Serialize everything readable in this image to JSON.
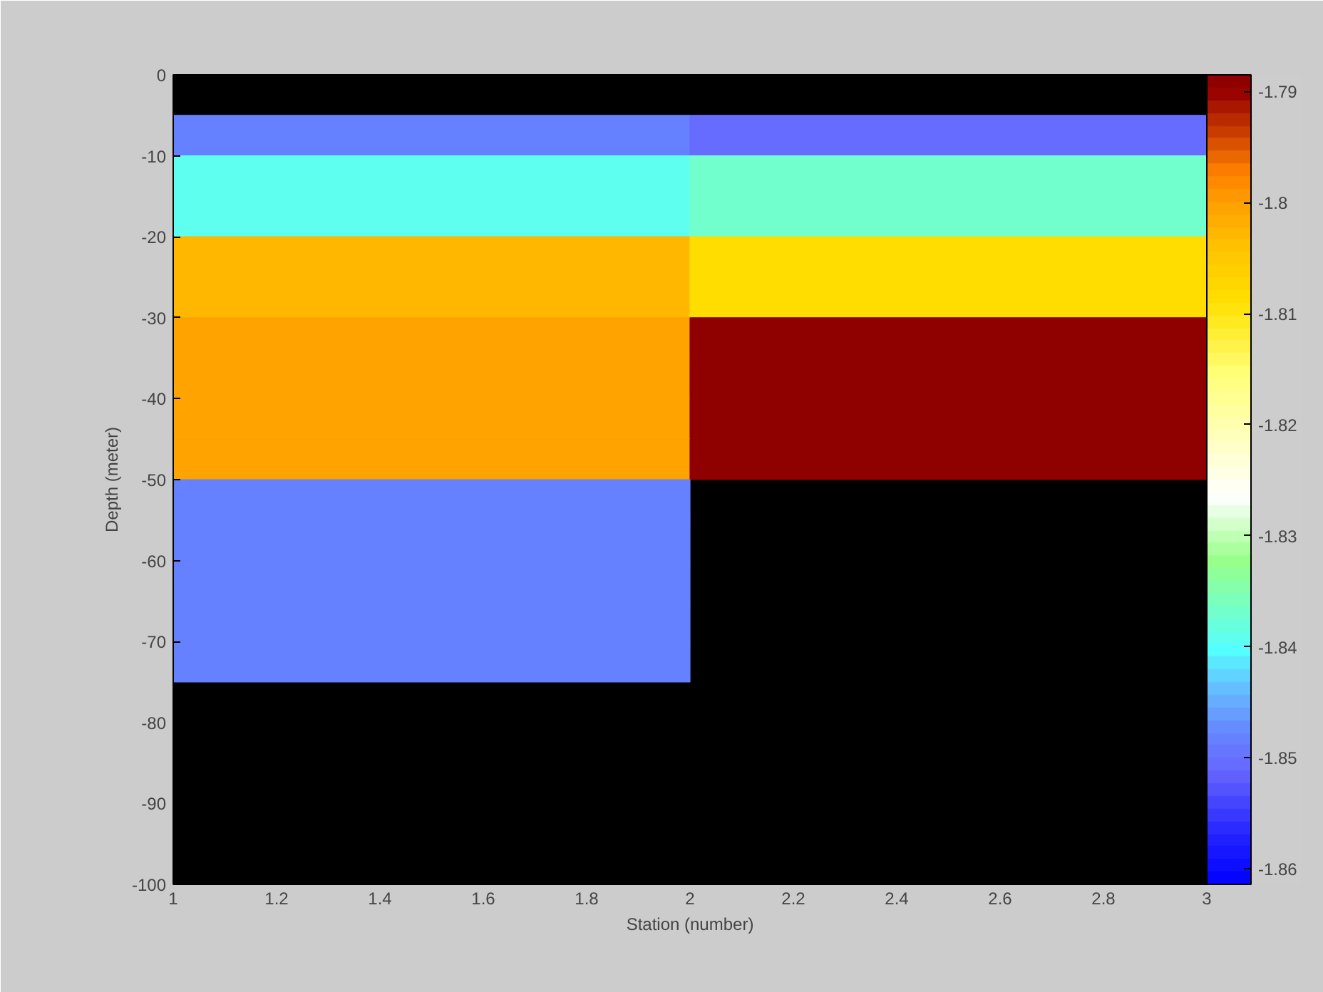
{
  "chart_data": {
    "type": "heatmap",
    "xlabel": "Station (number)",
    "ylabel": "Depth (meter)",
    "x": [
      1.5,
      2.5
    ],
    "y": [
      -7.5,
      -12.5,
      -17.5,
      -22.5,
      -27.5,
      -32.5,
      -37.5,
      -42.5,
      -47.5,
      -52.5,
      -57.5,
      -62.5,
      -67.5,
      -72.5
    ],
    "cells": [
      [
        -1.848,
        -1.851
      ],
      [
        -1.839,
        -1.837
      ],
      [
        -1.839,
        -1.837
      ],
      [
        -1.803,
        -1.808
      ],
      [
        -1.803,
        -1.808
      ],
      [
        -1.8,
        -1.789
      ],
      [
        -1.8,
        -1.789
      ],
      [
        -1.8,
        -1.789
      ],
      [
        -1.8,
        -1.789
      ],
      [
        -1.848,
        null
      ],
      [
        -1.848,
        null
      ],
      [
        -1.848,
        null
      ],
      [
        -1.848,
        null
      ],
      [
        -1.848,
        null
      ]
    ],
    "xlim": [
      1,
      3
    ],
    "xticks": [
      1,
      1.2,
      1.4,
      1.6,
      1.8,
      2,
      2.2,
      2.4,
      2.6,
      2.8,
      3
    ],
    "ylim": [
      -100,
      0
    ],
    "yticks": [
      -100,
      -90,
      -80,
      -70,
      -60,
      -50,
      -40,
      -30,
      -20,
      -10,
      0
    ],
    "clim": [
      -1.8614,
      -1.7885
    ],
    "cticks": [
      -1.86,
      -1.85,
      -1.84,
      -1.83,
      -1.82,
      -1.81,
      -1.8,
      -1.79
    ]
  }
}
